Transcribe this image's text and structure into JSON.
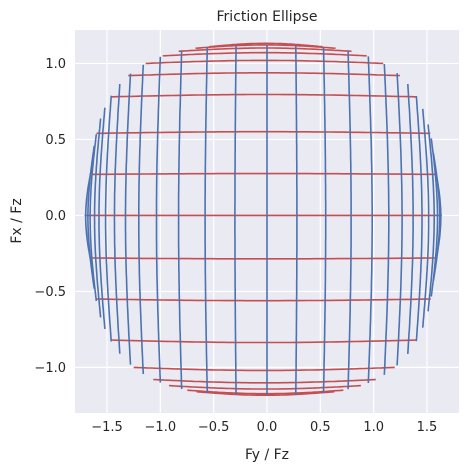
{
  "chart_data": {
    "type": "line",
    "title": "Friction Ellipse",
    "xlabel": "Fy / Fz",
    "ylabel": "Fx / Fz",
    "xlim": [
      -1.8,
      1.8
    ],
    "ylim": [
      -1.3,
      1.22
    ],
    "xticks": [
      -1.5,
      -1.0,
      -0.5,
      0.0,
      0.5,
      1.0,
      1.5
    ],
    "xtick_labels": [
      "−1.5",
      "−1.0",
      "−0.5",
      "0.0",
      "0.5",
      "1.0",
      "1.5"
    ],
    "yticks": [
      -1.0,
      -0.5,
      0.0,
      0.5,
      1.0
    ],
    "ytick_labels": [
      "−1.0",
      "−0.5",
      "0.0",
      "0.5",
      "1.0"
    ],
    "grid": true,
    "background": "#eaeaf2",
    "envelope": {
      "fy_right": 1.58,
      "fy_left": -1.65,
      "fx_max": 1.12,
      "fx_min": -1.18,
      "corner_exponent": 3.2
    },
    "series": [
      {
        "color": "#c44e52",
        "kind": "constant_fx",
        "fx_values": [
          -1.16,
          -1.15,
          -1.12,
          -1.08,
          -1.0,
          -0.82,
          -0.55,
          -0.28,
          0.0,
          0.27,
          0.54,
          0.78,
          0.92,
          1.0,
          1.05,
          1.08,
          1.1,
          1.11
        ]
      },
      {
        "color": "#4c72b0",
        "kind": "constant_fy",
        "fy_values": [
          -1.65,
          -1.64,
          -1.62,
          -1.6,
          -1.56,
          -1.52,
          -1.46,
          -1.38,
          -1.28,
          -1.16,
          -1.0,
          -0.8,
          -0.56,
          -0.29,
          0.0,
          0.27,
          0.53,
          0.76,
          0.95,
          1.1,
          1.22,
          1.32,
          1.4,
          1.46,
          1.51,
          1.54,
          1.56,
          1.57,
          1.58
        ]
      }
    ]
  }
}
